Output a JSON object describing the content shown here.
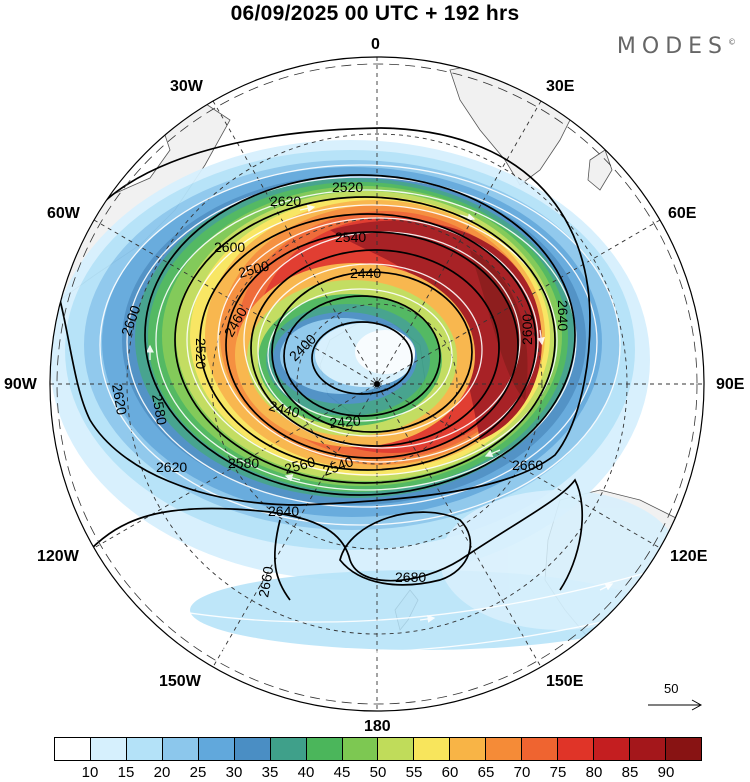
{
  "title": "06/09/2025  00 UTC  + 192 hrs",
  "brand": "MODES",
  "brand_mark": "©",
  "map": {
    "projection": "south polar stereographic",
    "variable_shaded": "wind speed",
    "contour_field": "geopotential height",
    "longitude_labels": {
      "top": "0",
      "top_right": "30E",
      "right_upper": "60E",
      "right": "90E",
      "right_lower": "120E",
      "bottom_right": "150E",
      "bottom": "180",
      "bottom_left": "150W",
      "left_lower": "120W",
      "left": "90W",
      "left_upper": "60W",
      "top_left": "30W"
    },
    "contour_labels": [
      "2520",
      "2540",
      "2620",
      "2600",
      "2500",
      "2440",
      "2460",
      "2400",
      "2600",
      "2580",
      "2520",
      "2640",
      "2620",
      "2600",
      "2440",
      "2420",
      "2580",
      "2560",
      "2540",
      "2620",
      "2660",
      "2640",
      "2660",
      "2680"
    ],
    "land_color": "#f2f2f2",
    "coast_color": "#555555"
  },
  "vector_scale": {
    "label": "50"
  },
  "colorbar": {
    "colors": [
      "#ffffff",
      "#d6f0fd",
      "#b4e2f8",
      "#8cc7ec",
      "#61a8dc",
      "#4a8ec4",
      "#3fa08a",
      "#4bb65b",
      "#7dc852",
      "#c0dc5a",
      "#f8e55c",
      "#f8b446",
      "#f58b37",
      "#ef6430",
      "#e03428",
      "#c41e20",
      "#a4171b",
      "#881313"
    ],
    "ticks": [
      "10",
      "15",
      "20",
      "25",
      "30",
      "35",
      "40",
      "45",
      "50",
      "55",
      "60",
      "65",
      "70",
      "75",
      "80",
      "85",
      "90"
    ]
  }
}
